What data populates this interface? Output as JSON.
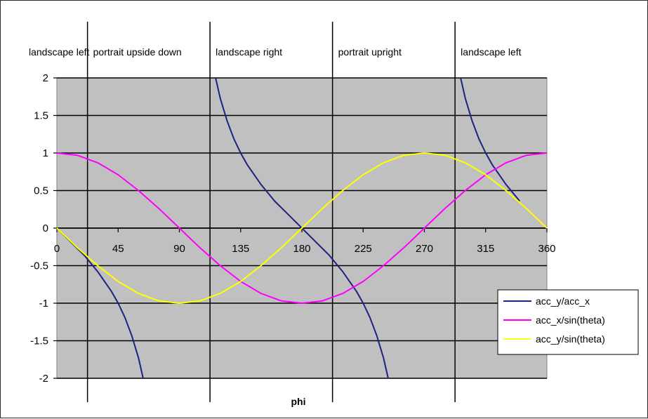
{
  "chart_data": {
    "type": "line",
    "xlabel": "phi",
    "ylabel": "",
    "xlim": [
      0,
      360
    ],
    "ylim": [
      -2,
      2
    ],
    "xticks": [
      0,
      45,
      90,
      135,
      180,
      225,
      270,
      315,
      360
    ],
    "yticks": [
      -2,
      -1.5,
      -1,
      -0.5,
      0,
      0.5,
      1,
      1.5,
      2
    ],
    "xtick_labels": [
      "0",
      "45",
      "90",
      "135",
      "180",
      "225",
      "270",
      "315",
      "360"
    ],
    "ytick_labels": [
      "-2",
      "-1.5",
      "-1",
      "-0.5",
      "0",
      "0.5",
      "1",
      "1.5",
      "2"
    ],
    "grid": "horizontal",
    "plot_background": "#c0c0c0",
    "legend_position": "right",
    "region_boundaries": [
      22.5,
      112.5,
      202.5,
      292.5
    ],
    "regions": [
      {
        "label": "landscape left",
        "from": 0,
        "to": 22.5
      },
      {
        "label": "portrait upside down",
        "from": 22.5,
        "to": 112.5
      },
      {
        "label": "landscape right",
        "from": 112.5,
        "to": 202.5
      },
      {
        "label": "portrait upright",
        "from": 202.5,
        "to": 292.5
      },
      {
        "label": "landscape left",
        "from": 292.5,
        "to": 360
      }
    ],
    "series": [
      {
        "name": "acc_y/acc_x",
        "color": "#1a237e",
        "x": [
          0,
          10,
          20,
          30,
          40,
          45,
          50,
          55,
          60,
          63.4,
          116.6,
          120,
          125,
          130,
          135,
          140,
          150,
          160,
          170,
          180,
          190,
          200,
          210,
          220,
          225,
          230,
          235,
          240,
          243.4,
          296.6,
          300,
          305,
          310,
          315,
          320,
          330,
          340
        ],
        "y": [
          0,
          -0.18,
          -0.36,
          -0.58,
          -0.84,
          -1,
          -1.19,
          -1.43,
          -1.73,
          -2,
          2,
          1.73,
          1.43,
          1.19,
          1,
          0.84,
          0.58,
          0.36,
          0.18,
          0,
          -0.18,
          -0.36,
          -0.58,
          -0.84,
          -1,
          -1.19,
          -1.43,
          -1.73,
          -2,
          2,
          1.73,
          1.43,
          1.19,
          1,
          0.84,
          0.58,
          0.36
        ]
      },
      {
        "name": "acc_x/sin(theta)",
        "color": "#ff00ff",
        "x": [
          0,
          15,
          30,
          45,
          60,
          75,
          90,
          105,
          120,
          135,
          150,
          165,
          180,
          195,
          210,
          225,
          240,
          255,
          270,
          285,
          300,
          315,
          330,
          345,
          360
        ],
        "y": [
          1,
          0.97,
          0.87,
          0.71,
          0.5,
          0.26,
          0,
          -0.26,
          -0.5,
          -0.71,
          -0.87,
          -0.97,
          -1,
          -0.97,
          -0.87,
          -0.71,
          -0.5,
          -0.26,
          0,
          0.26,
          0.5,
          0.71,
          0.87,
          0.97,
          1
        ]
      },
      {
        "name": "acc_y/sin(theta)",
        "color": "#ffff00",
        "x": [
          0,
          15,
          30,
          45,
          60,
          75,
          90,
          105,
          120,
          135,
          150,
          165,
          180,
          195,
          210,
          225,
          240,
          255,
          270,
          285,
          300,
          315,
          330,
          345,
          360
        ],
        "y": [
          0,
          -0.26,
          -0.5,
          -0.71,
          -0.87,
          -0.97,
          -1,
          -0.97,
          -0.87,
          -0.71,
          -0.5,
          -0.26,
          0,
          0.26,
          0.5,
          0.71,
          0.87,
          0.97,
          1,
          0.97,
          0.87,
          0.71,
          0.5,
          0.26,
          0
        ]
      }
    ]
  }
}
